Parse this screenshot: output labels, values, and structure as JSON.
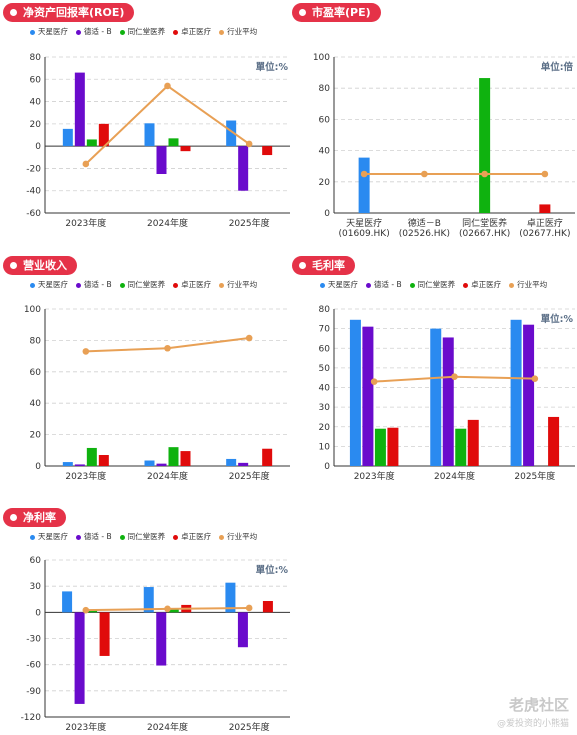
{
  "colors": {
    "天星医疗": "#2a8af0",
    "德适-B": "#6a0bcc",
    "同仁堂医养": "#0fb20f",
    "卓正医疗": "#e00b0b",
    "行业平均": "#e8a055",
    "pill": "#e53248"
  },
  "legend": {
    "items": [
      {
        "label": "天星医疗",
        "color": "#2a8af0"
      },
      {
        "label": "德适 - B",
        "color": "#6a0bcc"
      },
      {
        "label": "同仁堂医养",
        "color": "#0fb20f"
      },
      {
        "label": "卓正医疗",
        "color": "#e00b0b"
      },
      {
        "label": "行业平均",
        "color": "#e8a055"
      }
    ]
  },
  "watermark": {
    "logo": "老虎社区",
    "sub": "@爱投资的小熊猫"
  },
  "chart_data": [
    {
      "id": "roe",
      "type": "bar",
      "title": "净资产回报率(ROE)",
      "unit_label": "單位:%",
      "categories": [
        "2023年度",
        "2024年度",
        "2025年度"
      ],
      "ylim": [
        -60,
        80
      ],
      "yticks": [
        -60,
        -40,
        -20,
        0,
        20,
        40,
        60,
        80
      ],
      "series": [
        {
          "name": "天星医疗",
          "values": [
            15.5,
            20.5,
            23
          ]
        },
        {
          "name": "德适 - B",
          "values": [
            66,
            -25,
            -40
          ]
        },
        {
          "name": "同仁堂医养",
          "values": [
            6,
            7,
            null
          ]
        },
        {
          "name": "卓正医疗",
          "values": [
            20,
            -4.5,
            -8
          ]
        }
      ],
      "line": {
        "name": "行业平均",
        "values": [
          -16,
          54,
          2
        ]
      }
    },
    {
      "id": "pe",
      "type": "bar",
      "title": "市盈率(PE)",
      "unit_label": "单位:倍",
      "categories": [
        "天星医疗\n(01609.HK)",
        "德适－B\n(02526.HK)",
        "同仁堂医养\n(02667.HK)",
        "卓正医疗\n(02677.HK)"
      ],
      "ylim": [
        0,
        100
      ],
      "yticks": [
        0,
        20,
        40,
        60,
        80,
        100
      ],
      "values": [
        35.5,
        null,
        86.5,
        5.5
      ],
      "bar_colors": [
        "#2a8af0",
        "#6a0bcc",
        "#0fb20f",
        "#e00b0b"
      ],
      "line": {
        "name": "行业平均",
        "values": [
          25,
          25,
          25,
          25
        ]
      }
    },
    {
      "id": "revenue",
      "type": "bar",
      "title": "营业收入",
      "unit_label": "",
      "categories": [
        "2023年度",
        "2024年度",
        "2025年度"
      ],
      "ylim": [
        0,
        100
      ],
      "yticks": [
        0,
        20,
        40,
        60,
        80,
        100
      ],
      "series": [
        {
          "name": "天星医疗",
          "values": [
            2.5,
            3.5,
            4.5
          ]
        },
        {
          "name": "德适 - B",
          "values": [
            1,
            1.5,
            2
          ]
        },
        {
          "name": "同仁堂医养",
          "values": [
            11.5,
            12,
            null
          ]
        },
        {
          "name": "卓正医疗",
          "values": [
            7,
            9.5,
            11
          ]
        }
      ],
      "line": {
        "name": "行业平均",
        "values": [
          73,
          75,
          81.5
        ]
      }
    },
    {
      "id": "gross",
      "type": "bar",
      "title": "毛利率",
      "unit_label": "單位:%",
      "categories": [
        "2023年度",
        "2024年度",
        "2025年度"
      ],
      "ylim": [
        0,
        80
      ],
      "yticks": [
        0,
        10,
        20,
        30,
        40,
        50,
        60,
        70,
        80
      ],
      "series": [
        {
          "name": "天星医疗",
          "values": [
            74.5,
            70,
            74.5
          ]
        },
        {
          "name": "德适 - B",
          "values": [
            71,
            65.5,
            72
          ]
        },
        {
          "name": "同仁堂医养",
          "values": [
            19,
            19,
            null
          ]
        },
        {
          "name": "卓正医疗",
          "values": [
            19.5,
            23.5,
            25
          ]
        }
      ],
      "line": {
        "name": "行业平均",
        "values": [
          43,
          45.5,
          44.5
        ]
      }
    },
    {
      "id": "net",
      "type": "bar",
      "title": "净利率",
      "unit_label": "單位:%",
      "categories": [
        "2023年度",
        "2024年度",
        "2025年度"
      ],
      "ylim": [
        -120,
        60
      ],
      "yticks": [
        -120,
        -90,
        -60,
        -30,
        0,
        30,
        60
      ],
      "series": [
        {
          "name": "天星医疗",
          "values": [
            24,
            29,
            34
          ]
        },
        {
          "name": "德适 - B",
          "values": [
            -105,
            -61,
            -40
          ]
        },
        {
          "name": "同仁堂医养",
          "values": [
            3,
            4,
            null
          ]
        },
        {
          "name": "卓正医疗",
          "values": [
            -50,
            8.5,
            13
          ]
        }
      ],
      "line": {
        "name": "行业平均",
        "values": [
          2.5,
          4,
          5
        ]
      }
    }
  ]
}
